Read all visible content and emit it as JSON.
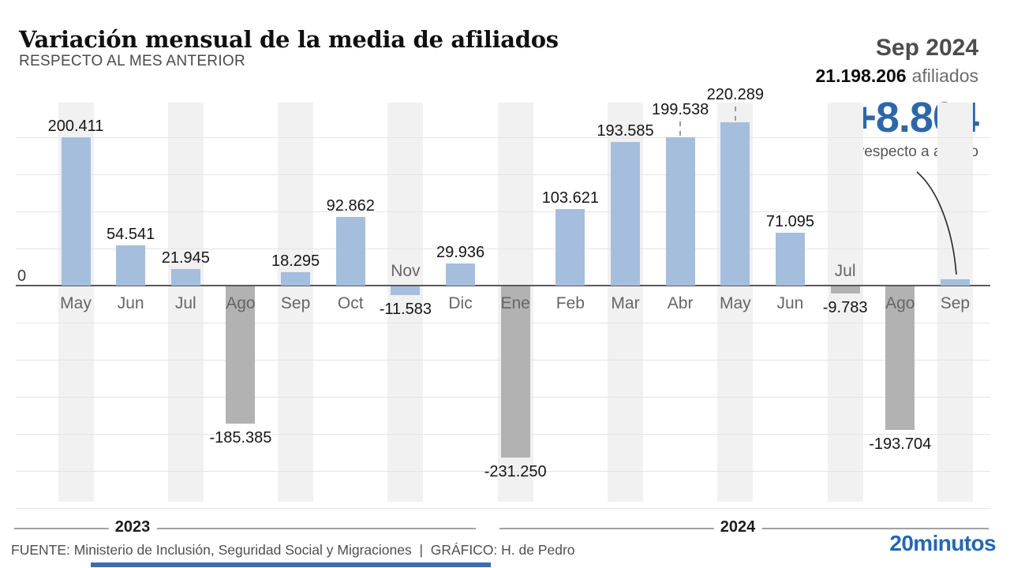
{
  "header": {
    "title": "Variación mensual de la media de afiliados",
    "subtitle": "RESPECTO AL MES ANTERIOR"
  },
  "highlight": {
    "period": "Sep 2024",
    "total": "21.198.206",
    "total_suffix": "afiliados",
    "delta": "+8.804",
    "delta_note": "respecto a agosto"
  },
  "chart_data": {
    "type": "bar",
    "title": "Variación mensual de la media de afiliados",
    "subtitle": "RESPECTO AL MES ANTERIOR",
    "zero_label": "0",
    "ylabel": "",
    "xlabel": "",
    "gridline_step": 50000,
    "ylim": [
      -300000,
      250000
    ],
    "bars": [
      {
        "year": 2023,
        "month": "May",
        "value": 200411,
        "label": "200.411",
        "color": "blue"
      },
      {
        "year": 2023,
        "month": "Jun",
        "value": 54541,
        "label": "54.541",
        "color": "blue"
      },
      {
        "year": 2023,
        "month": "Jul",
        "value": 21945,
        "label": "21.945",
        "color": "blue"
      },
      {
        "year": 2023,
        "month": "Ago",
        "value": -185385,
        "label": "-185.385",
        "color": "gray"
      },
      {
        "year": 2023,
        "month": "Sep",
        "value": 18295,
        "label": "18.295",
        "color": "blue"
      },
      {
        "year": 2023,
        "month": "Oct",
        "value": 92862,
        "label": "92.862",
        "color": "blue"
      },
      {
        "year": 2023,
        "month": "Nov",
        "value": -11583,
        "label": "-11.583",
        "color": "blue",
        "month_label_above": true
      },
      {
        "year": 2023,
        "month": "Dic",
        "value": 29936,
        "label": "29.936",
        "color": "blue"
      },
      {
        "year": 2024,
        "month": "Ene",
        "value": -231250,
        "label": "-231.250",
        "color": "gray"
      },
      {
        "year": 2024,
        "month": "Feb",
        "value": 103621,
        "label": "103.621",
        "color": "blue"
      },
      {
        "year": 2024,
        "month": "Mar",
        "value": 193585,
        "label": "193.585",
        "color": "blue"
      },
      {
        "year": 2024,
        "month": "Abr",
        "value": 199538,
        "label": "199.538",
        "color": "blue",
        "leader": true
      },
      {
        "year": 2024,
        "month": "May",
        "value": 220289,
        "label": "220.289",
        "color": "blue",
        "leader": true
      },
      {
        "year": 2024,
        "month": "Jun",
        "value": 71095,
        "label": "71.095",
        "color": "blue"
      },
      {
        "year": 2024,
        "month": "Jul",
        "value": -9783,
        "label": "-9.783",
        "color": "gray",
        "month_label_above": true
      },
      {
        "year": 2024,
        "month": "Ago",
        "value": -193704,
        "label": "-193.704",
        "color": "gray"
      },
      {
        "year": 2024,
        "month": "Sep",
        "value": 8804,
        "label": "",
        "color": "blue"
      }
    ],
    "year_axis": [
      {
        "label": "2023"
      },
      {
        "label": "2024"
      }
    ],
    "colors": {
      "blue": "#a6bedd",
      "gray": "#b2b2b2",
      "band": "#f1f1f1",
      "gridline": "#e5e5e5",
      "baseline": "#5a5a5a",
      "accent_blue": "#2d67a7",
      "logo_blue": "#2368b2"
    }
  },
  "footer": {
    "source": "FUENTE: Ministerio de Inclusión, Seguridad Social y Migraciones  |  GRÁFICO: H. de Pedro",
    "logo": "20minutos"
  }
}
